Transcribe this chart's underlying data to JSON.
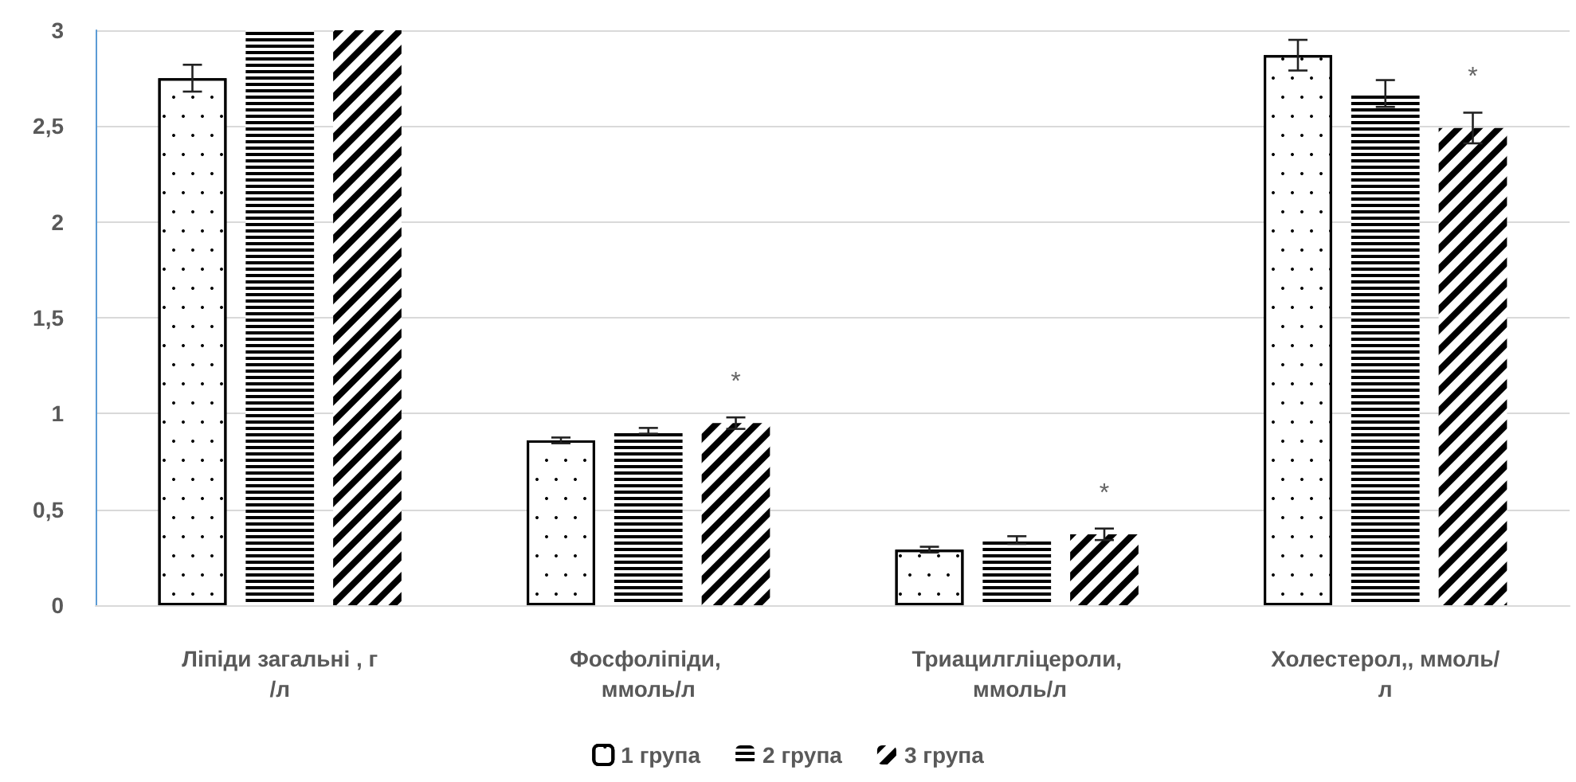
{
  "chart_data": {
    "type": "bar",
    "categories": [
      "Ліпіди загальні , г/л",
      "Фосфоліпіди, ммоль/л",
      "Триацилгліцероли, ммоль/л",
      "Холестерол,, ммоль/л"
    ],
    "series": [
      {
        "name": "1 група",
        "color": "#000000",
        "values": [
          2.75,
          0.86,
          0.29,
          2.87
        ],
        "errors": [
          0.07,
          0.015,
          0.015,
          0.08
        ]
      },
      {
        "name": "2 група",
        "color": "#000000",
        "values": [
          3,
          0.91,
          0.34,
          2.67
        ],
        "errors": [
          null,
          0.015,
          0.02,
          0.07
        ]
      },
      {
        "name": "3 група",
        "color": "#000000",
        "values": [
          3,
          0.95,
          0.37,
          2.49
        ],
        "errors": [
          null,
          0.03,
          0.03,
          0.08
        ]
      }
    ],
    "ylim": [
      0,
      3
    ],
    "yticks": [
      0,
      {
        "value": 0.5,
        "label": "0,5"
      },
      1,
      {
        "value": 1.5,
        "label": "1,5"
      },
      2,
      {
        "value": 2.5,
        "label": "2,5"
      },
      3
    ],
    "annotations": [
      "*",
      "*",
      "*"
    ],
    "grid": "y",
    "legend": "bottom"
  }
}
